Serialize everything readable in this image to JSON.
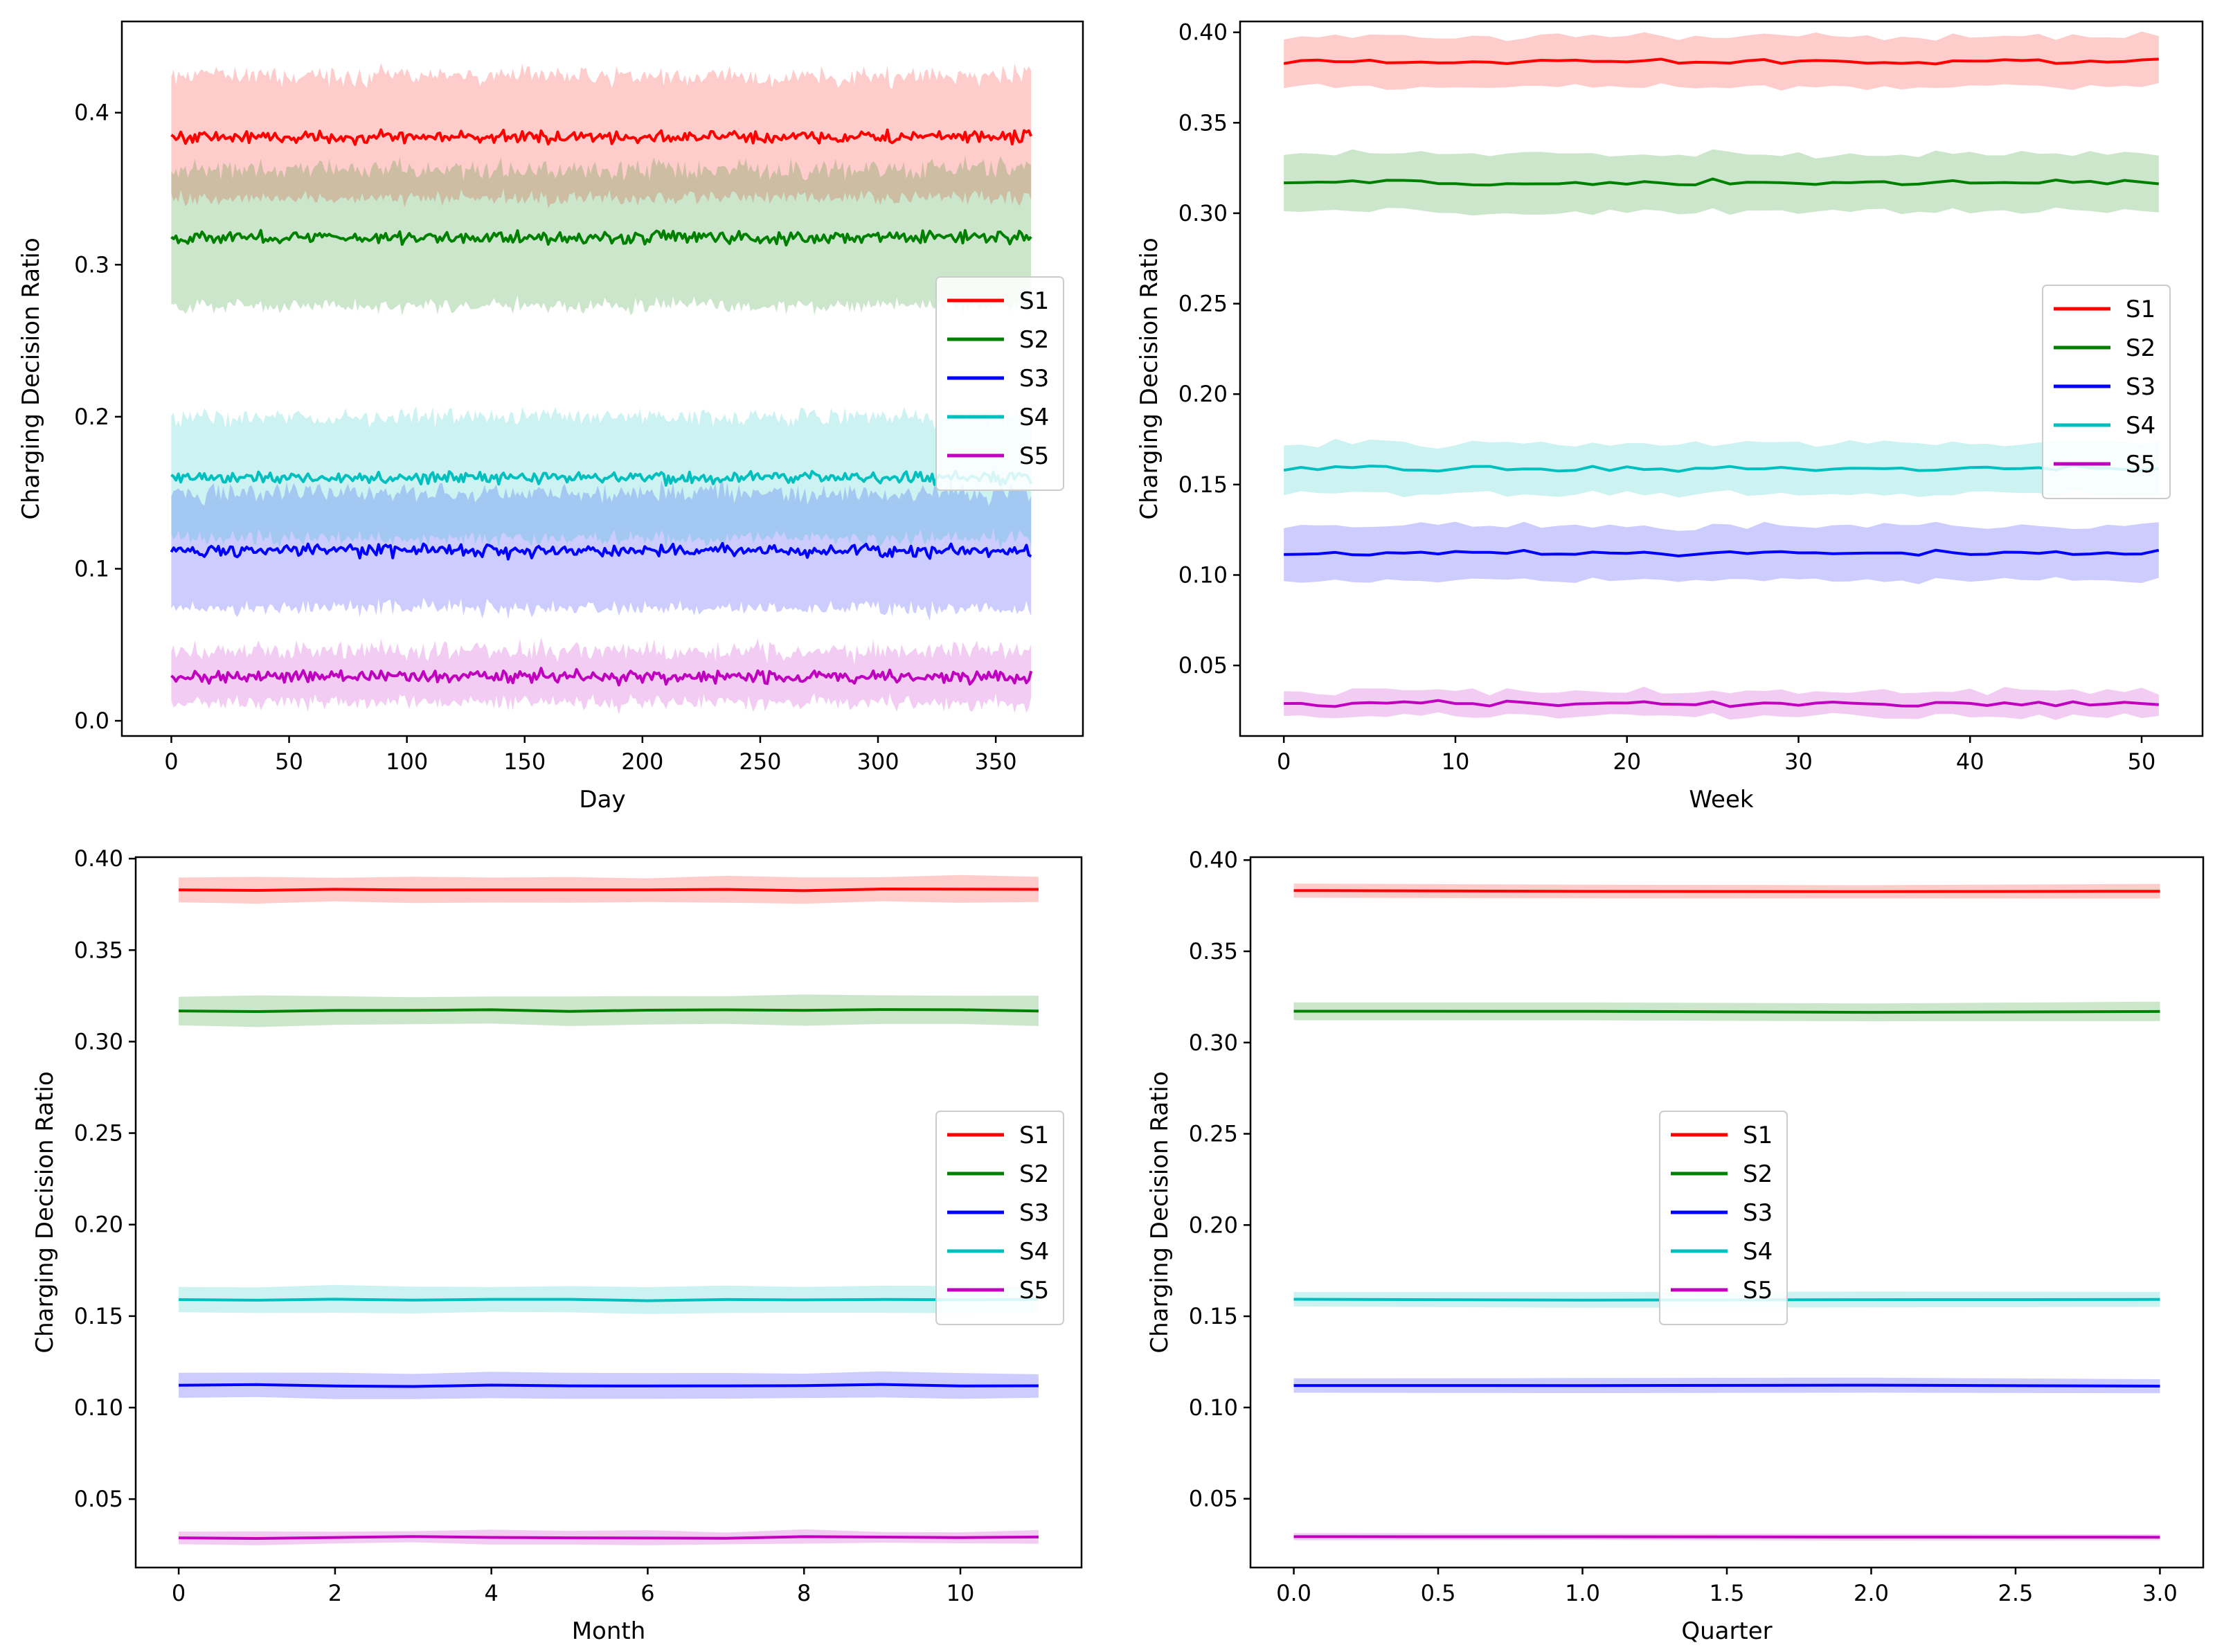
{
  "figure": {
    "y_axis_label": "Charging Decision Ratio",
    "series_colors": {
      "S1": "#ff0000",
      "S2": "#008000",
      "S3": "#0000ff",
      "S4": "#00bfbf",
      "S5": "#bf00bf"
    }
  },
  "chart_data": [
    {
      "type": "line",
      "panel": "top-left",
      "xlabel": "Day",
      "ylabel": "Charging Decision Ratio",
      "xlim": [
        -21,
        387
      ],
      "ylim": [
        -0.01,
        0.46
      ],
      "xticks": [
        0,
        50,
        100,
        150,
        200,
        250,
        300,
        350
      ],
      "xtick_labels": [
        "0",
        "50",
        "100",
        "150",
        "200",
        "250",
        "300",
        "350"
      ],
      "yticks": [
        0.0,
        0.1,
        0.2,
        0.3,
        0.4
      ],
      "ytick_labels": [
        "0.0",
        "0.1",
        "0.2",
        "0.3",
        "0.4"
      ],
      "x_range": [
        0,
        365
      ],
      "noise": 0.006,
      "legend": "center-right",
      "series": [
        {
          "name": "S1",
          "color": "#ff0000",
          "mean": 0.384,
          "band": 0.04
        },
        {
          "name": "S2",
          "color": "#008000",
          "mean": 0.318,
          "band": 0.045
        },
        {
          "name": "S3",
          "color": "#0000ff",
          "mean": 0.112,
          "band": 0.038
        },
        {
          "name": "S4",
          "color": "#00bfbf",
          "mean": 0.16,
          "band": 0.04
        },
        {
          "name": "S5",
          "color": "#bf00bf",
          "mean": 0.029,
          "band": 0.017
        }
      ]
    },
    {
      "type": "line",
      "panel": "top-right",
      "xlabel": "Week",
      "ylabel": "Charging Decision Ratio",
      "xlim": [
        -2.55,
        53.55
      ],
      "ylim": [
        0.011,
        0.406
      ],
      "xticks": [
        0,
        10,
        20,
        30,
        40,
        50
      ],
      "xtick_labels": [
        "0",
        "10",
        "20",
        "30",
        "40",
        "50"
      ],
      "yticks": [
        0.05,
        0.1,
        0.15,
        0.2,
        0.25,
        0.3,
        0.35,
        0.4
      ],
      "ytick_labels": [
        "0.05",
        "0.10",
        "0.15",
        "0.20",
        "0.25",
        "0.30",
        "0.35",
        "0.40"
      ],
      "x_range": [
        0,
        51
      ],
      "noise": 0.0022,
      "legend": "center-right",
      "series": [
        {
          "name": "S1",
          "color": "#ff0000",
          "mean": 0.384,
          "band": 0.014
        },
        {
          "name": "S2",
          "color": "#008000",
          "mean": 0.317,
          "band": 0.016
        },
        {
          "name": "S3",
          "color": "#0000ff",
          "mean": 0.112,
          "band": 0.015
        },
        {
          "name": "S4",
          "color": "#00bfbf",
          "mean": 0.159,
          "band": 0.014
        },
        {
          "name": "S5",
          "color": "#bf00bf",
          "mean": 0.029,
          "band": 0.007
        }
      ]
    },
    {
      "type": "line",
      "panel": "bottom-left",
      "xlabel": "Month",
      "ylabel": "Charging Decision Ratio",
      "xlim": [
        -0.55,
        11.55
      ],
      "ylim": [
        0.0126,
        0.4008
      ],
      "xticks": [
        0,
        2,
        4,
        6,
        8,
        10
      ],
      "xtick_labels": [
        "0",
        "2",
        "4",
        "6",
        "8",
        "10"
      ],
      "yticks": [
        0.05,
        0.1,
        0.15,
        0.2,
        0.25,
        0.3,
        0.35,
        0.4
      ],
      "ytick_labels": [
        "0.05",
        "0.10",
        "0.15",
        "0.20",
        "0.25",
        "0.30",
        "0.35",
        "0.40"
      ],
      "x_range": [
        0,
        11
      ],
      "noise": 0.001,
      "legend": "center-right",
      "series": [
        {
          "name": "S1",
          "color": "#ff0000",
          "mean": 0.383,
          "band": 0.007
        },
        {
          "name": "S2",
          "color": "#008000",
          "mean": 0.317,
          "band": 0.008
        },
        {
          "name": "S3",
          "color": "#0000ff",
          "mean": 0.112,
          "band": 0.007
        },
        {
          "name": "S4",
          "color": "#00bfbf",
          "mean": 0.159,
          "band": 0.007
        },
        {
          "name": "S5",
          "color": "#bf00bf",
          "mean": 0.029,
          "band": 0.0035
        }
      ]
    },
    {
      "type": "line",
      "panel": "bottom-right",
      "xlabel": "Quarter",
      "ylabel": "Charging Decision Ratio",
      "xlim": [
        -0.15,
        3.15
      ],
      "ylim": [
        0.0123,
        0.4016
      ],
      "xticks": [
        0.0,
        0.5,
        1.0,
        1.5,
        2.0,
        2.5,
        3.0
      ],
      "xtick_labels": [
        "0.0",
        "0.5",
        "1.0",
        "1.5",
        "2.0",
        "2.5",
        "3.0"
      ],
      "yticks": [
        0.05,
        0.1,
        0.15,
        0.2,
        0.25,
        0.3,
        0.35,
        0.4
      ],
      "ytick_labels": [
        "0.05",
        "0.10",
        "0.15",
        "0.20",
        "0.25",
        "0.30",
        "0.35",
        "0.40"
      ],
      "x_range": [
        0,
        3
      ],
      "noise": 0.0006,
      "legend": "center",
      "series": [
        {
          "name": "S1",
          "color": "#ff0000",
          "mean": 0.383,
          "band": 0.004
        },
        {
          "name": "S2",
          "color": "#008000",
          "mean": 0.317,
          "band": 0.005
        },
        {
          "name": "S3",
          "color": "#0000ff",
          "mean": 0.112,
          "band": 0.004
        },
        {
          "name": "S4",
          "color": "#00bfbf",
          "mean": 0.159,
          "band": 0.004
        },
        {
          "name": "S5",
          "color": "#bf00bf",
          "mean": 0.029,
          "band": 0.002
        }
      ]
    }
  ]
}
